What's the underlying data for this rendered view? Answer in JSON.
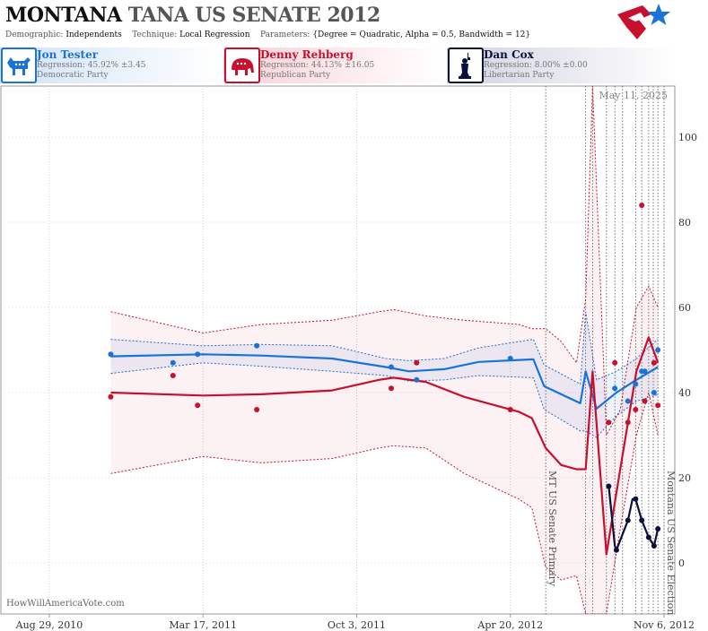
{
  "header": {
    "state": "MONTANA",
    "race": "TANA US SENATE 2012",
    "demographic_label": "Demographic:",
    "demographic": "Independents",
    "technique_label": "Technique:",
    "technique": "Local Regression",
    "parameters_label": "Parameters:",
    "parameters": "{Degree = Quadratic, Alpha = 0.5, Bandwidth = 12}"
  },
  "candidates": [
    {
      "name": "Jon Tester",
      "regression": "Regression: 45.92% ±3.45",
      "party": "Democratic Party",
      "color": "#1a73d9",
      "icon": "donkey-icon"
    },
    {
      "name": "Denny Rehberg",
      "regression": "Regression: 44.13% ±16.05",
      "party": "Republican Party",
      "color": "#c8102e",
      "icon": "elephant-icon"
    },
    {
      "name": "Dan Cox",
      "regression": "Regression: 8.00% ±0.00",
      "party": "Libertarian Party",
      "color": "#0b0f3c",
      "icon": "liberty-statue-icon"
    }
  ],
  "credit": "HowWillAmericaVote.com",
  "chart_data": {
    "type": "line",
    "date_label": "May 11, 2025",
    "x_ticks": [
      "Aug 29, 2010",
      "Mar 17, 2011",
      "Oct 3, 2011",
      "Apr 20, 2012",
      "Nov 6, 2012"
    ],
    "x_tick_dates": [
      "2010-08-29",
      "2011-03-17",
      "2011-10-03",
      "2012-04-20",
      "2012-11-06"
    ],
    "y_ticks": [
      0,
      20,
      40,
      60,
      80,
      100
    ],
    "ylim": [
      -12,
      112
    ],
    "xlim": [
      "2010-06-27",
      "2012-11-20"
    ],
    "events": [
      {
        "date": "2012-06-05",
        "label": "MT US Senate Primary"
      },
      {
        "date": "2012-11-06",
        "label": "Montana US Senate Election"
      }
    ],
    "poll_dates": [
      "2012-07-27",
      "2012-08-05",
      "2012-08-23",
      "2012-09-03",
      "2012-09-13",
      "2012-09-30",
      "2012-10-08",
      "2012-10-17",
      "2012-10-23",
      "2012-10-29"
    ],
    "series": [
      {
        "name": "Jon Tester",
        "color": "#1a73d9",
        "points": [
          {
            "date": "2010-11-17",
            "value": 49
          },
          {
            "date": "2011-02-06",
            "value": 47
          },
          {
            "date": "2011-03-10",
            "value": 49
          },
          {
            "date": "2011-05-26",
            "value": 51
          },
          {
            "date": "2011-11-17",
            "value": 46
          },
          {
            "date": "2011-12-20",
            "value": 43
          },
          {
            "date": "2012-04-20",
            "value": 48
          },
          {
            "date": "2012-09-03",
            "value": 41
          },
          {
            "date": "2012-09-20",
            "value": 38
          },
          {
            "date": "2012-09-30",
            "value": 42
          },
          {
            "date": "2012-10-08",
            "value": 45
          },
          {
            "date": "2012-10-12",
            "value": 45
          },
          {
            "date": "2012-10-24",
            "value": 40
          },
          {
            "date": "2012-10-29",
            "value": 50
          }
        ],
        "trend": [
          {
            "date": "2010-11-17",
            "value": 48.5
          },
          {
            "date": "2011-03-17",
            "value": 49.0
          },
          {
            "date": "2011-06-01",
            "value": 48.7
          },
          {
            "date": "2011-09-01",
            "value": 48.0
          },
          {
            "date": "2011-11-10",
            "value": 46.0
          },
          {
            "date": "2011-12-10",
            "value": 45.0
          },
          {
            "date": "2012-01-25",
            "value": 45.5
          },
          {
            "date": "2012-03-10",
            "value": 47.2
          },
          {
            "date": "2012-05-20",
            "value": 47.8
          },
          {
            "date": "2012-06-03",
            "value": 41.5
          },
          {
            "date": "2012-07-20",
            "value": 37.5
          },
          {
            "date": "2012-07-27",
            "value": 45.0
          },
          {
            "date": "2012-08-10",
            "value": 36.2
          },
          {
            "date": "2012-09-05",
            "value": 40.0
          },
          {
            "date": "2012-10-01",
            "value": 43.0
          },
          {
            "date": "2012-10-29",
            "value": 46.0
          }
        ],
        "upper": [
          {
            "date": "2010-11-17",
            "value": 52.5
          },
          {
            "date": "2011-03-17",
            "value": 51.0
          },
          {
            "date": "2011-06-01",
            "value": 51.3
          },
          {
            "date": "2011-09-01",
            "value": 51.0
          },
          {
            "date": "2011-11-10",
            "value": 48.0
          },
          {
            "date": "2011-12-10",
            "value": 47.5
          },
          {
            "date": "2012-01-25",
            "value": 48.0
          },
          {
            "date": "2012-03-10",
            "value": 50.5
          },
          {
            "date": "2012-05-20",
            "value": 52.5
          },
          {
            "date": "2012-06-03",
            "value": 46.5
          },
          {
            "date": "2012-07-20",
            "value": 42.0
          },
          {
            "date": "2012-07-27",
            "value": 59.0
          },
          {
            "date": "2012-08-10",
            "value": 43.0
          },
          {
            "date": "2012-09-05",
            "value": 45.0
          },
          {
            "date": "2012-10-01",
            "value": 48.0
          },
          {
            "date": "2012-10-29",
            "value": 52.5
          }
        ],
        "lower": [
          {
            "date": "2010-11-17",
            "value": 44.5
          },
          {
            "date": "2011-03-17",
            "value": 47.0
          },
          {
            "date": "2011-06-01",
            "value": 46.2
          },
          {
            "date": "2011-09-01",
            "value": 45.0
          },
          {
            "date": "2011-11-10",
            "value": 44.0
          },
          {
            "date": "2011-12-10",
            "value": 42.7
          },
          {
            "date": "2012-01-25",
            "value": 43.0
          },
          {
            "date": "2012-03-10",
            "value": 44.0
          },
          {
            "date": "2012-05-20",
            "value": 43.5
          },
          {
            "date": "2012-06-03",
            "value": 36.0
          },
          {
            "date": "2012-07-20",
            "value": 31.0
          },
          {
            "date": "2012-07-27",
            "value": 31.0
          },
          {
            "date": "2012-08-10",
            "value": 29.5
          },
          {
            "date": "2012-09-05",
            "value": 34.5
          },
          {
            "date": "2012-10-01",
            "value": 38.0
          },
          {
            "date": "2012-10-29",
            "value": 39.5
          }
        ]
      },
      {
        "name": "Denny Rehberg",
        "color": "#c8102e",
        "points": [
          {
            "date": "2010-11-17",
            "value": 39
          },
          {
            "date": "2011-02-06",
            "value": 44
          },
          {
            "date": "2011-03-10",
            "value": 37
          },
          {
            "date": "2011-05-26",
            "value": 36
          },
          {
            "date": "2011-11-17",
            "value": 41
          },
          {
            "date": "2011-12-20",
            "value": 47
          },
          {
            "date": "2012-04-20",
            "value": 36
          },
          {
            "date": "2012-08-26",
            "value": 33
          },
          {
            "date": "2012-09-03",
            "value": 47
          },
          {
            "date": "2012-09-20",
            "value": 33
          },
          {
            "date": "2012-09-30",
            "value": 36
          },
          {
            "date": "2012-10-08",
            "value": 84
          },
          {
            "date": "2012-10-12",
            "value": 38
          },
          {
            "date": "2012-10-24",
            "value": 47
          },
          {
            "date": "2012-10-29",
            "value": 37
          }
        ],
        "trend": [
          {
            "date": "2010-11-17",
            "value": 40.0
          },
          {
            "date": "2011-03-17",
            "value": 39.3
          },
          {
            "date": "2011-06-01",
            "value": 39.6
          },
          {
            "date": "2011-09-01",
            "value": 40.5
          },
          {
            "date": "2011-11-01",
            "value": 43.0
          },
          {
            "date": "2011-11-20",
            "value": 43.5
          },
          {
            "date": "2012-01-01",
            "value": 42.5
          },
          {
            "date": "2012-02-20",
            "value": 39.0
          },
          {
            "date": "2012-05-01",
            "value": 35.5
          },
          {
            "date": "2012-05-18",
            "value": 34.0
          },
          {
            "date": "2012-06-05",
            "value": 27.0
          },
          {
            "date": "2012-06-25",
            "value": 23.0
          },
          {
            "date": "2012-07-15",
            "value": 22.0
          },
          {
            "date": "2012-07-27",
            "value": 22.0
          },
          {
            "date": "2012-08-05",
            "value": 45.0
          },
          {
            "date": "2012-08-23",
            "value": 2.0
          },
          {
            "date": "2012-09-10",
            "value": 22.0
          },
          {
            "date": "2012-10-01",
            "value": 45.0
          },
          {
            "date": "2012-10-17",
            "value": 53.0
          },
          {
            "date": "2012-10-29",
            "value": 47.0
          }
        ],
        "upper": [
          {
            "date": "2010-11-17",
            "value": 59.0
          },
          {
            "date": "2011-03-17",
            "value": 54.0
          },
          {
            "date": "2011-06-01",
            "value": 56.0
          },
          {
            "date": "2011-09-01",
            "value": 57.0
          },
          {
            "date": "2011-11-01",
            "value": 59.0
          },
          {
            "date": "2011-11-20",
            "value": 59.5
          },
          {
            "date": "2012-01-01",
            "value": 58.0
          },
          {
            "date": "2012-02-20",
            "value": 57.0
          },
          {
            "date": "2012-05-01",
            "value": 56.0
          },
          {
            "date": "2012-05-18",
            "value": 55.0
          },
          {
            "date": "2012-06-05",
            "value": 55.0
          },
          {
            "date": "2012-06-25",
            "value": 52.0
          },
          {
            "date": "2012-07-15",
            "value": 47.0
          },
          {
            "date": "2012-07-27",
            "value": 62.0
          },
          {
            "date": "2012-08-05",
            "value": 112.0
          },
          {
            "date": "2012-08-23",
            "value": 30.0
          },
          {
            "date": "2012-09-10",
            "value": 36.0
          },
          {
            "date": "2012-10-01",
            "value": 60.0
          },
          {
            "date": "2012-10-17",
            "value": 65.0
          },
          {
            "date": "2012-10-29",
            "value": 60.0
          }
        ],
        "lower": [
          {
            "date": "2010-11-17",
            "value": 21.0
          },
          {
            "date": "2011-03-17",
            "value": 25.0
          },
          {
            "date": "2011-06-01",
            "value": 23.5
          },
          {
            "date": "2011-09-01",
            "value": 24.5
          },
          {
            "date": "2011-11-01",
            "value": 27.0
          },
          {
            "date": "2011-11-20",
            "value": 27.5
          },
          {
            "date": "2012-01-01",
            "value": 27.0
          },
          {
            "date": "2012-02-20",
            "value": 21.0
          },
          {
            "date": "2012-05-01",
            "value": 15.0
          },
          {
            "date": "2012-05-18",
            "value": 13.0
          },
          {
            "date": "2012-06-05",
            "value": -1.0
          },
          {
            "date": "2012-06-25",
            "value": -4.0
          },
          {
            "date": "2012-07-15",
            "value": -3.0
          },
          {
            "date": "2012-07-27",
            "value": -12.0
          },
          {
            "date": "2012-08-05",
            "value": -12.0
          },
          {
            "date": "2012-08-23",
            "value": -12.0
          },
          {
            "date": "2012-09-10",
            "value": 8.0
          },
          {
            "date": "2012-10-01",
            "value": 30.0
          },
          {
            "date": "2012-10-17",
            "value": 40.0
          },
          {
            "date": "2012-10-29",
            "value": 30.0
          }
        ]
      },
      {
        "name": "Dan Cox",
        "color": "#0b0f3c",
        "points": [
          {
            "date": "2012-08-26",
            "value": 18
          },
          {
            "date": "2012-09-05",
            "value": 3
          },
          {
            "date": "2012-09-20",
            "value": 10
          },
          {
            "date": "2012-09-30",
            "value": 15
          },
          {
            "date": "2012-10-08",
            "value": 10
          },
          {
            "date": "2012-10-17",
            "value": 6
          },
          {
            "date": "2012-10-24",
            "value": 4
          },
          {
            "date": "2012-10-29",
            "value": 8
          }
        ],
        "trend": [
          {
            "date": "2012-08-26",
            "value": 18
          },
          {
            "date": "2012-09-03",
            "value": 4
          },
          {
            "date": "2012-09-05",
            "value": 3
          },
          {
            "date": "2012-09-20",
            "value": 10
          },
          {
            "date": "2012-09-26",
            "value": 15
          },
          {
            "date": "2012-09-30",
            "value": 15
          },
          {
            "date": "2012-10-08",
            "value": 10
          },
          {
            "date": "2012-10-17",
            "value": 6
          },
          {
            "date": "2012-10-24",
            "value": 4
          },
          {
            "date": "2012-10-29",
            "value": 8
          }
        ]
      }
    ]
  }
}
